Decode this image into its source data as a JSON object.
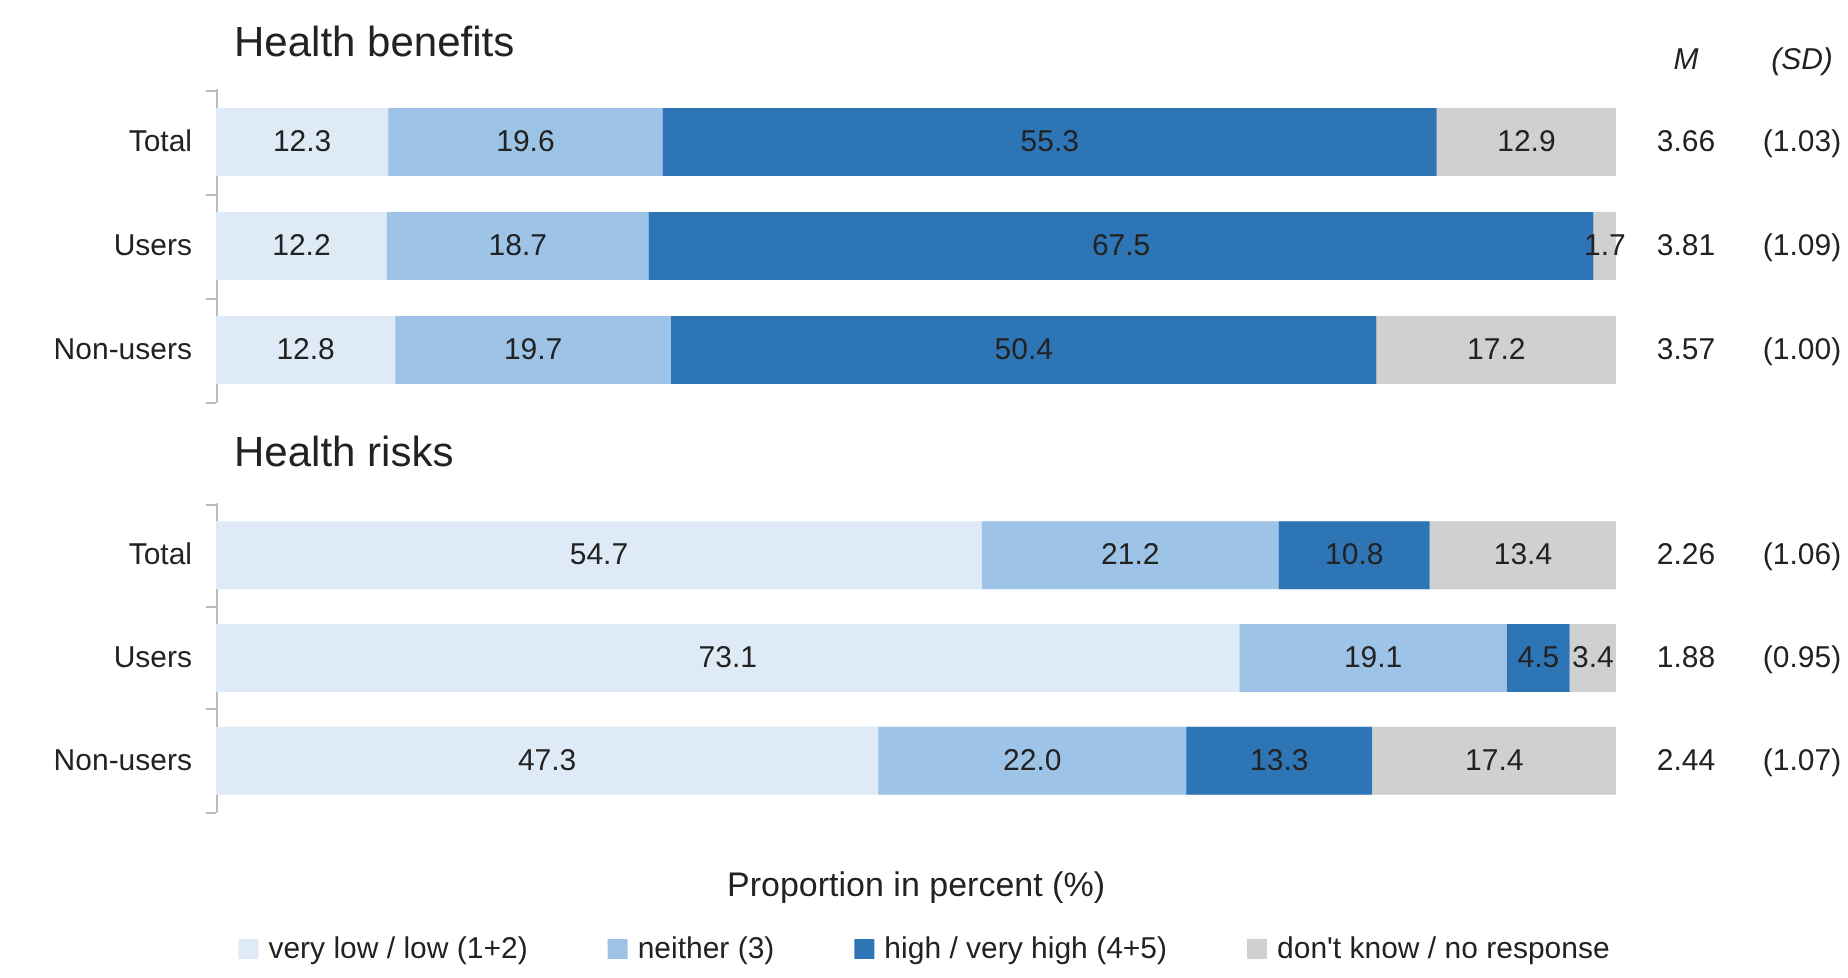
{
  "chart_data": [
    {
      "type": "bar",
      "orientation": "horizontal",
      "stacked": true,
      "title": "Health benefits",
      "categories": [
        "Total",
        "Users",
        "Non-users"
      ],
      "series": [
        {
          "color": "#deebf7",
          "values": [
            12.3,
            12.2,
            12.8
          ]
        },
        {
          "color": "#9dc3e6",
          "values": [
            19.6,
            18.7,
            19.7
          ]
        },
        {
          "color": "#2e75b6",
          "values": [
            55.3,
            67.5,
            50.4
          ]
        },
        {
          "color": "#d0d0d0",
          "values": [
            12.9,
            1.7,
            17.2
          ]
        }
      ],
      "xlim": [
        0,
        100
      ],
      "tick_labels": "y",
      "data_labels": true,
      "grid": false,
      "legend": false,
      "annotations": [
        "M",
        "(SD)",
        "3.66",
        "(1.03)",
        "3.81",
        "(1.09)",
        "3.57",
        "(1.00)"
      ]
    },
    {
      "type": "bar",
      "orientation": "horizontal",
      "stacked": true,
      "title": "Health risks",
      "xlabel": "Proportion in percent (%)",
      "categories": [
        "Total",
        "Users",
        "Non-users"
      ],
      "series": [
        {
          "name": "very low / low (1+2)",
          "color": "#deebf7",
          "values": [
            54.7,
            73.1,
            47.3
          ],
          "value_labels": [
            "54.7",
            "73.1",
            "47.3"
          ]
        },
        {
          "name": "neither (3)",
          "color": "#9dc3e6",
          "values": [
            21.2,
            19.1,
            22.0
          ],
          "value_labels": [
            "21.2",
            "19.1",
            "22.0"
          ]
        },
        {
          "name": "high / very high (4+5)",
          "color": "#2e75b6",
          "values": [
            10.8,
            4.5,
            13.3
          ],
          "value_labels": [
            "10.8",
            "4.5",
            "13.3"
          ]
        },
        {
          "name": "don't know / no response",
          "color": "#d0d0d0",
          "values": [
            13.4,
            3.4,
            17.4
          ],
          "value_labels": [
            "13.4",
            "3.4",
            "17.4"
          ]
        }
      ],
      "xlim": [
        0,
        100
      ],
      "tick_labels": "y",
      "grid": false,
      "legend": "bottom",
      "annotations": [
        "2.26",
        "(1.06)",
        "1.88",
        "(0.95)",
        "2.44",
        "(1.07)"
      ]
    }
  ]
}
